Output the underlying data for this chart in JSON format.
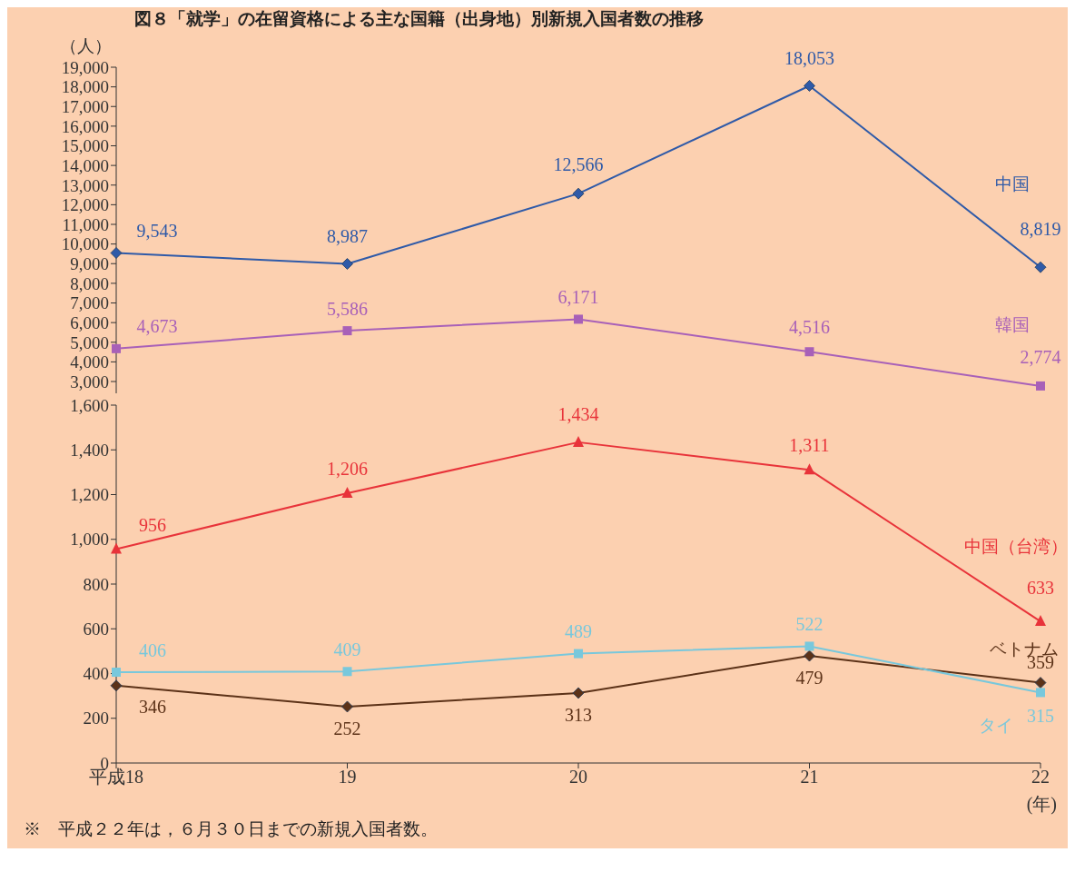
{
  "chart_data": [
    {
      "type": "line",
      "title": "図８「就学」の在留資格による主な国籍（出身地）別新規入国者数の推移",
      "ylabel": "（人）",
      "categories": [
        null,
        null,
        null,
        null,
        null
      ],
      "ylim": [
        2400,
        19000
      ],
      "yticks": [
        {
          "value": 3000,
          "label": "3,000"
        },
        {
          "value": 4000,
          "label": "4,000"
        },
        {
          "value": 5000,
          "label": "5,000"
        },
        {
          "value": 6000,
          "label": "6,000"
        },
        {
          "value": 7000,
          "label": "7,000"
        },
        {
          "value": 8000,
          "label": "8,000"
        },
        {
          "value": 9000,
          "label": "9,000"
        },
        {
          "value": 10000,
          "label": "10,000"
        },
        {
          "value": 11000,
          "label": "11,000"
        },
        {
          "value": 12000,
          "label": "12,000"
        },
        {
          "value": 13000,
          "label": "13,000"
        },
        {
          "value": 14000,
          "label": "14,000"
        },
        {
          "value": 15000,
          "label": "15,000"
        },
        {
          "value": 16000,
          "label": "16,000"
        },
        {
          "value": 17000,
          "label": "17,000"
        },
        {
          "value": 18000,
          "label": "18,000"
        },
        {
          "value": 19000,
          "label": "19,000"
        }
      ],
      "tick_labels": "y",
      "series": [
        {
          "name": "中国",
          "color": "#2f5aa8",
          "marker": "diamond",
          "values": [
            9543,
            8987,
            12566,
            18053,
            8819
          ],
          "value_labels": [
            "9,543",
            "8,987",
            "12,566",
            "18,053",
            "8,819"
          ]
        },
        {
          "name": "韓国",
          "color": "#a860b8",
          "marker": "square",
          "values": [
            4673,
            5586,
            6171,
            4516,
            2774
          ],
          "value_labels": [
            "4,673",
            "5,586",
            "6,171",
            "4,516",
            "2,774"
          ]
        }
      ]
    },
    {
      "type": "line",
      "xlabel": "(年)",
      "categories": [
        "平成18",
        "19",
        "20",
        "21",
        "22"
      ],
      "ylim": [
        0,
        1600
      ],
      "yticks": [
        0,
        200,
        400,
        600,
        800,
        {
          "value": 1000,
          "label": "1,000"
        },
        {
          "value": 1200,
          "label": "1,200"
        },
        {
          "value": 1400,
          "label": "1,400"
        },
        {
          "value": 1600,
          "label": "1,600"
        }
      ],
      "annotations": [
        "※　平成２２年は，６月３０日までの新規入国者数。"
      ],
      "series": [
        {
          "name": "中国（台湾）",
          "color": "#e8333a",
          "marker": "triangle",
          "values": [
            956,
            1206,
            1434,
            1311,
            633
          ],
          "value_labels": [
            "956",
            "1,206",
            "1,434",
            "1,311",
            "633"
          ]
        },
        {
          "name": "ベトナム",
          "color": "#5c3218",
          "marker": "diamond",
          "values": [
            346,
            252,
            313,
            479,
            359
          ],
          "value_labels": [
            "346",
            "252",
            "313",
            "479",
            "359"
          ]
        },
        {
          "name": "タイ",
          "color": "#78c8dc",
          "marker": "square",
          "values": [
            406,
            409,
            489,
            522,
            315
          ],
          "value_labels": [
            "406",
            "409",
            "489",
            "522",
            "315"
          ]
        }
      ]
    }
  ]
}
